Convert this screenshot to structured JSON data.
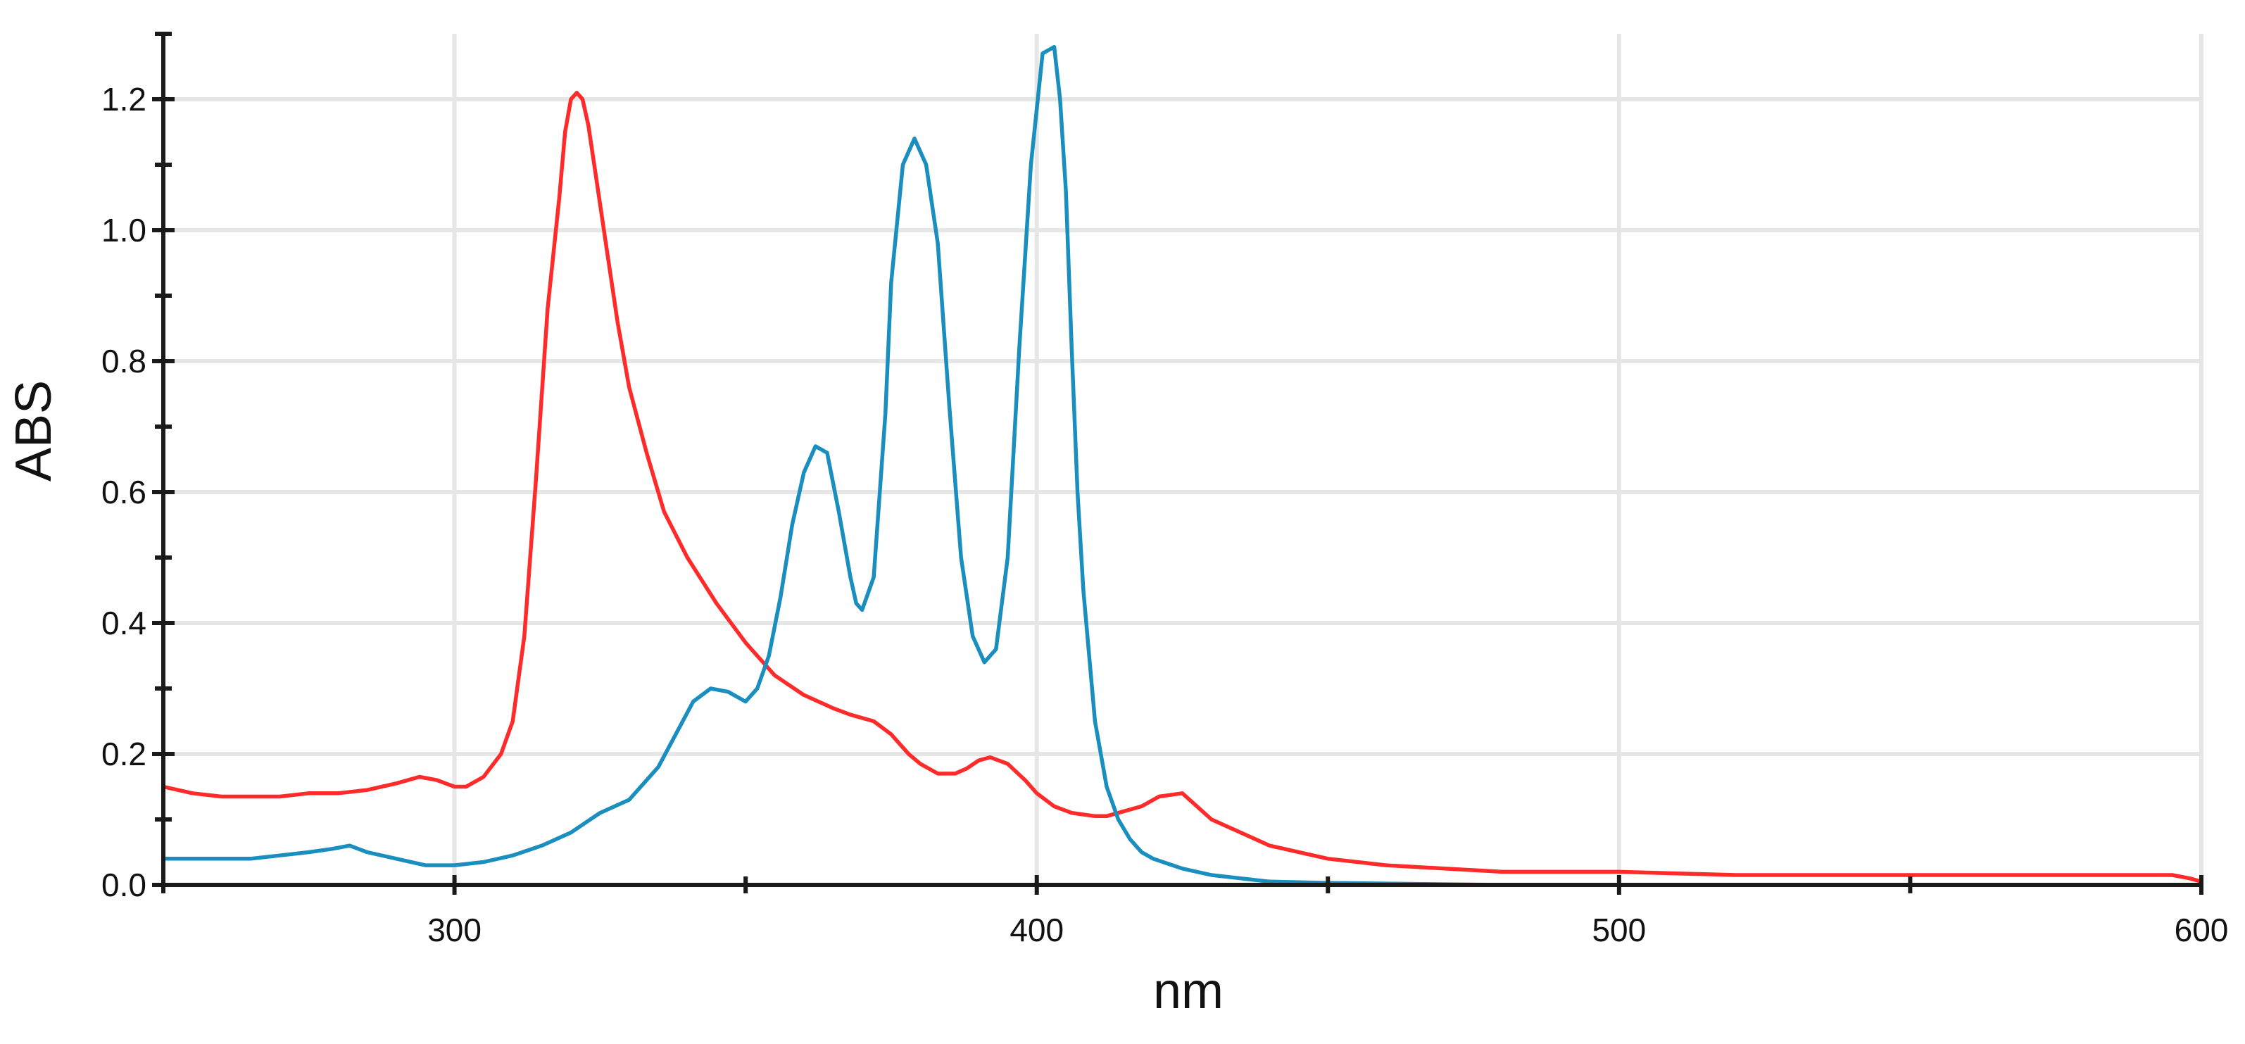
{
  "chart_data": {
    "type": "line",
    "title": "",
    "xlabel": "nm",
    "ylabel": "ABS",
    "xlim": [
      250,
      600
    ],
    "ylim": [
      0,
      1.3
    ],
    "x_major_ticks": [
      300,
      400,
      500,
      600
    ],
    "x_minor_ticks": [
      250,
      350,
      450,
      550
    ],
    "y_major_ticks": [
      0.0,
      0.2,
      0.4,
      0.6,
      0.8,
      1.0,
      1.2
    ],
    "y_minor_ticks": [
      0.1,
      0.3,
      0.5,
      0.7,
      0.9,
      1.1,
      1.3
    ],
    "x_tick_labels": [
      "300",
      "400",
      "500",
      "600"
    ],
    "y_tick_labels": [
      "0.0",
      "0.2",
      "0.4",
      "0.6",
      "0.8",
      "1.0",
      "1.2"
    ],
    "grid": true,
    "series": [
      {
        "color": "#ff2a2a",
        "x": [
          250,
          255,
          260,
          265,
          270,
          275,
          280,
          285,
          290,
          294,
          297,
          300,
          302,
          305,
          308,
          310,
          312,
          314,
          316,
          318,
          319,
          320,
          321,
          322,
          323,
          324,
          326,
          328,
          330,
          333,
          336,
          340,
          345,
          350,
          355,
          360,
          365,
          368,
          372,
          375,
          378,
          380,
          383,
          386,
          388,
          390,
          392,
          395,
          398,
          400,
          403,
          406,
          410,
          412,
          414,
          416,
          418,
          421,
          425,
          430,
          440,
          450,
          460,
          470,
          480,
          500,
          520,
          550,
          580,
          595,
          598,
          600
        ],
        "y": [
          0.15,
          0.14,
          0.135,
          0.135,
          0.135,
          0.14,
          0.14,
          0.145,
          0.155,
          0.165,
          0.16,
          0.15,
          0.15,
          0.165,
          0.2,
          0.25,
          0.38,
          0.62,
          0.88,
          1.05,
          1.15,
          1.2,
          1.21,
          1.2,
          1.16,
          1.1,
          0.98,
          0.86,
          0.76,
          0.66,
          0.57,
          0.5,
          0.43,
          0.37,
          0.32,
          0.29,
          0.27,
          0.26,
          0.25,
          0.23,
          0.2,
          0.185,
          0.17,
          0.17,
          0.178,
          0.19,
          0.195,
          0.185,
          0.16,
          0.14,
          0.12,
          0.11,
          0.105,
          0.105,
          0.11,
          0.115,
          0.12,
          0.135,
          0.14,
          0.1,
          0.06,
          0.04,
          0.03,
          0.025,
          0.02,
          0.02,
          0.015,
          0.015,
          0.015,
          0.015,
          0.01,
          0.005
        ]
      },
      {
        "color": "#1a8fbf",
        "x": [
          250,
          255,
          260,
          265,
          270,
          275,
          279,
          282,
          285,
          290,
          295,
          300,
          305,
          310,
          315,
          320,
          325,
          330,
          335,
          338,
          341,
          344,
          347,
          350,
          352,
          354,
          356,
          358,
          360,
          362,
          364,
          366,
          368,
          369,
          370,
          372,
          374,
          375,
          377,
          379,
          381,
          383,
          385,
          387,
          389,
          391,
          393,
          395,
          397,
          399,
          401,
          403,
          404,
          405,
          406,
          407,
          408,
          410,
          412,
          414,
          416,
          418,
          420,
          425,
          430,
          435,
          440,
          450,
          460,
          480,
          520,
          560,
          600
        ],
        "y": [
          0.04,
          0.04,
          0.04,
          0.04,
          0.045,
          0.05,
          0.055,
          0.06,
          0.05,
          0.04,
          0.03,
          0.03,
          0.035,
          0.045,
          0.06,
          0.08,
          0.11,
          0.13,
          0.18,
          0.23,
          0.28,
          0.3,
          0.295,
          0.28,
          0.3,
          0.35,
          0.44,
          0.55,
          0.63,
          0.67,
          0.66,
          0.57,
          0.47,
          0.43,
          0.42,
          0.47,
          0.72,
          0.92,
          1.1,
          1.14,
          1.1,
          0.98,
          0.73,
          0.5,
          0.38,
          0.34,
          0.36,
          0.5,
          0.82,
          1.1,
          1.27,
          1.28,
          1.2,
          1.06,
          0.82,
          0.6,
          0.45,
          0.25,
          0.15,
          0.1,
          0.07,
          0.05,
          0.04,
          0.025,
          0.015,
          0.01,
          0.005,
          0.003,
          0.002,
          0.0,
          0.0,
          0.0,
          0.0
        ]
      }
    ]
  }
}
